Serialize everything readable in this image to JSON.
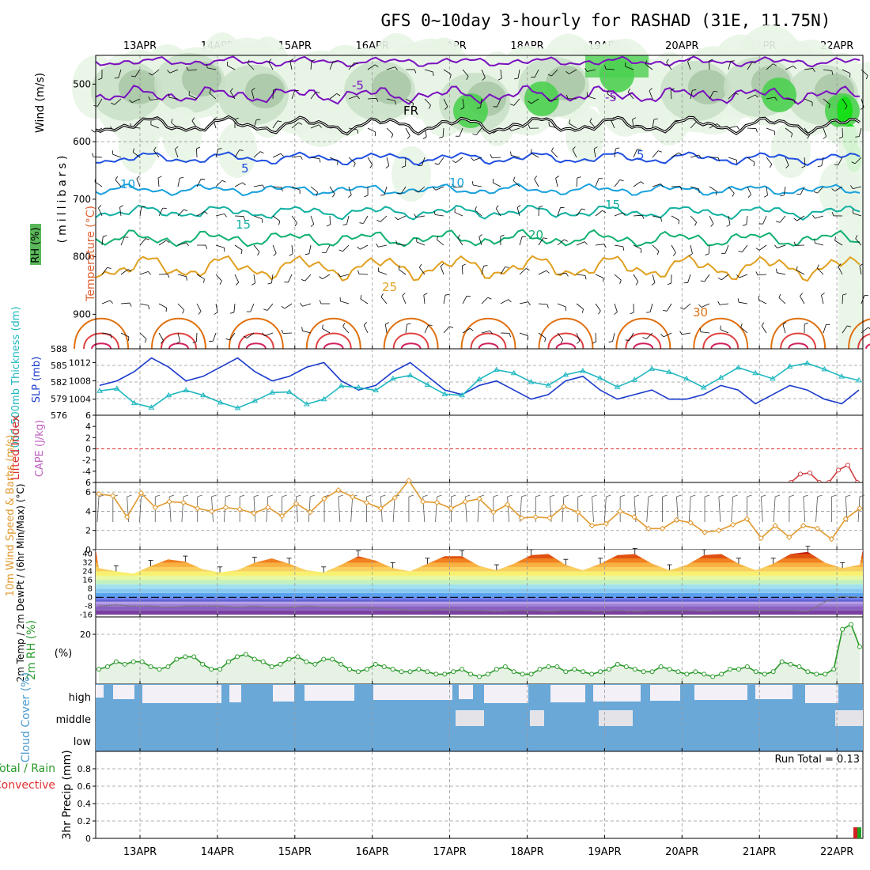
{
  "title": "GFS 0~10day 3-hourly for RASHAD (31E, 11.75N)",
  "dates": [
    "13APR",
    "14APR",
    "15APR",
    "16APR",
    "17APR",
    "18APR",
    "19APR",
    "20APR",
    "21APR",
    "22APR"
  ],
  "chart_data": [
    {
      "type": "heatmap",
      "panel": "upper-air",
      "ylabel": "(millibars)",
      "ylabel_words": {
        "wind": "Wind (m/s)",
        "temp": "Temperature (°C)",
        "rh": "RH (%)"
      },
      "ylim": [
        450,
        960
      ],
      "y_ticks": [
        500,
        600,
        700,
        800,
        900
      ],
      "temperature_isotherms": [
        {
          "label": "-5",
          "color": "#7a10c0",
          "levels": [
            -5
          ]
        },
        {
          "label": "5",
          "color": "#1f4fe0",
          "levels": [
            5
          ]
        },
        {
          "label": "10",
          "color": "#18a0dc",
          "levels": [
            10
          ]
        },
        {
          "label": "15",
          "color": "#10b0a0",
          "levels": [
            15
          ]
        },
        {
          "label": "20",
          "color": "#10b070",
          "levels": [
            20
          ]
        },
        {
          "label": "25",
          "color": "#e0a020",
          "levels": [
            25
          ]
        },
        {
          "label": "30",
          "color": "#e06010",
          "levels": [
            30
          ]
        }
      ],
      "annotations": [
        "FR",
        "-5",
        "5",
        "10",
        "15",
        "20",
        "25",
        "30",
        "10",
        "30"
      ],
      "rh_colors": [
        "#ffffff",
        "#e8f5e6",
        "#c8dfc6",
        "#a6c4a4",
        "#4cd050",
        "#10e010"
      ]
    },
    {
      "type": "line",
      "panel": "thickness-slp",
      "ylabel_left": "1000-500mb Thickness (dm)",
      "ylabel_right": "SLP (mb)",
      "left_ticks": [
        576,
        579,
        582,
        585,
        588
      ],
      "right_ticks": [
        1004,
        1008,
        1012
      ],
      "series": [
        {
          "name": "SLP (mb)",
          "color": "#1a3acc",
          "values": [
            1007,
            1008,
            1010,
            1013,
            1011,
            1008,
            1009,
            1011,
            1013,
            1010,
            1008,
            1009,
            1011,
            1012,
            1008,
            1006,
            1007,
            1010,
            1012,
            1009,
            1006,
            1005,
            1007,
            1008,
            1006,
            1004,
            1005,
            1008,
            1009,
            1006,
            1004,
            1005,
            1006,
            1004,
            1004,
            1005,
            1007,
            1006,
            1003,
            1005,
            1007,
            1006,
            1004,
            1003,
            1006
          ]
        },
        {
          "name": "Thickness (dm)",
          "color": "#20b8c0",
          "values": [
            580.4,
            580.8,
            578.2,
            577.4,
            579.6,
            580.5,
            579.6,
            578.3,
            577.3,
            578.6,
            580.1,
            580.2,
            578.0,
            578.9,
            581.3,
            581.0,
            580.5,
            582.6,
            583.2,
            581.5,
            579.8,
            579.6,
            582.5,
            584.2,
            583.6,
            582.0,
            581.4,
            583.3,
            584.0,
            582.7,
            581.1,
            582.4,
            584.4,
            583.8,
            582.6,
            581.0,
            582.8,
            584.6,
            583.6,
            582.6,
            584.8,
            585.4,
            584.3,
            583.0,
            582.3
          ]
        }
      ]
    },
    {
      "type": "line",
      "panel": "cape-li",
      "ylabel": "Lifted Index",
      "ylabel2": "CAPE (J/kg)",
      "ylim": [
        6,
        -6
      ],
      "y_ticks": [
        -6,
        -4,
        -2,
        0,
        2,
        4,
        6
      ],
      "series": [
        {
          "name": "Lifted Index",
          "color": "#d04040",
          "segment": "late",
          "values": [
            6,
            4.5,
            4.3,
            6,
            6,
            3.8,
            2.9,
            6
          ]
        }
      ]
    },
    {
      "type": "line",
      "panel": "wind10m",
      "ylabel": "10m Wind Speed & Barbs (m/s)",
      "ylim": [
        0,
        7
      ],
      "y_ticks": [
        0,
        2,
        4,
        6
      ],
      "series": [
        {
          "name": "Speed",
          "color": "#e09a30",
          "values": [
            5.8,
            5.6,
            3.4,
            5.9,
            4.4,
            5.0,
            4.9,
            4.3,
            4.0,
            4.4,
            4.2,
            3.8,
            4.4,
            3.5,
            4.8,
            3.9,
            5.3,
            6.2,
            5.5,
            4.9,
            4.3,
            5.4,
            7.2,
            5.0,
            4.9,
            4.3,
            5.0,
            5.3,
            3.9,
            4.7,
            3.3,
            3.4,
            3.3,
            4.5,
            3.9,
            2.5,
            2.7,
            4.0,
            3.4,
            2.2,
            2.2,
            3.1,
            2.8,
            1.8,
            2.0,
            2.6,
            3.2,
            1.2,
            2.5,
            1.3,
            2.5,
            2.2,
            1.1,
            3.2,
            4.3
          ]
        }
      ]
    },
    {
      "type": "area",
      "panel": "temp2m",
      "ylabel": "2m Temp / 2m DewPt / (6hr Min/Max) (°C)",
      "y_ticks": [
        -16,
        -8,
        0,
        8,
        16,
        24,
        32,
        40
      ],
      "series": [
        {
          "name": "2m Temp",
          "color": "#e06010",
          "values": [
            27,
            24,
            22,
            29,
            35,
            33,
            26,
            23,
            25,
            32,
            36,
            31,
            25,
            23,
            30,
            38,
            34,
            27,
            24,
            31,
            38,
            38,
            29,
            25,
            31,
            39,
            40,
            30,
            25,
            31,
            39,
            40,
            31,
            25,
            30,
            39,
            40,
            31,
            25,
            31,
            40,
            42,
            32,
            27,
            30
          ]
        },
        {
          "name": "2m DewPt",
          "color": "#777777",
          "values": [
            -8,
            -7,
            -8,
            -8,
            -9,
            -8,
            -8,
            -8,
            -9,
            -8,
            -9,
            -9,
            -8,
            -9,
            -10,
            -9,
            -10,
            -11,
            -12,
            -12,
            -11,
            -12,
            -12,
            -13,
            -12,
            -12,
            -13,
            -12,
            -12,
            -13,
            -12,
            -13,
            -12,
            -12,
            -12,
            -13,
            -12,
            -12,
            -12,
            -12,
            -12,
            -13,
            -4,
            1,
            0
          ]
        }
      ]
    },
    {
      "type": "line",
      "panel": "rh2m",
      "ylabel": "2m RH (%)",
      "ylim": [
        0,
        27
      ],
      "y_ticks": [
        20
      ],
      "series": [
        {
          "name": "2m RH",
          "color": "#2a9a2a",
          "values": [
            6,
            7,
            9,
            8,
            9,
            9,
            7,
            6,
            7,
            10,
            11,
            11,
            8,
            6,
            6,
            9,
            11,
            12,
            10,
            9,
            7,
            8,
            10,
            11,
            9,
            8,
            10,
            10,
            8,
            6,
            5,
            6,
            8,
            7,
            6,
            5,
            5,
            6,
            5,
            4,
            4,
            5,
            6,
            4,
            3,
            4,
            6,
            7,
            5,
            4,
            4,
            6,
            7,
            7,
            5,
            6,
            5,
            4,
            5,
            6,
            8,
            7,
            6,
            5,
            5,
            7,
            6,
            5,
            4,
            5,
            4,
            3,
            4,
            6,
            6,
            7,
            5,
            4,
            5,
            9,
            8,
            7,
            5,
            4,
            4,
            6,
            22,
            24,
            15
          ]
        }
      ]
    },
    {
      "type": "bar",
      "panel": "cloud-cover",
      "ylabel": "Cloud Cover (%)",
      "categories": [
        "high",
        "middle",
        "low"
      ],
      "color": "#6aa8d8"
    },
    {
      "type": "bar",
      "panel": "precip",
      "ylabel": "3hr Precip (mm)",
      "ylabel2": "Total / Rain",
      "ylabel3": "Convective",
      "y_ticks": [
        0,
        0.2,
        0.4,
        0.6,
        0.8
      ],
      "run_total": "Run Total = 0.13"
    }
  ]
}
